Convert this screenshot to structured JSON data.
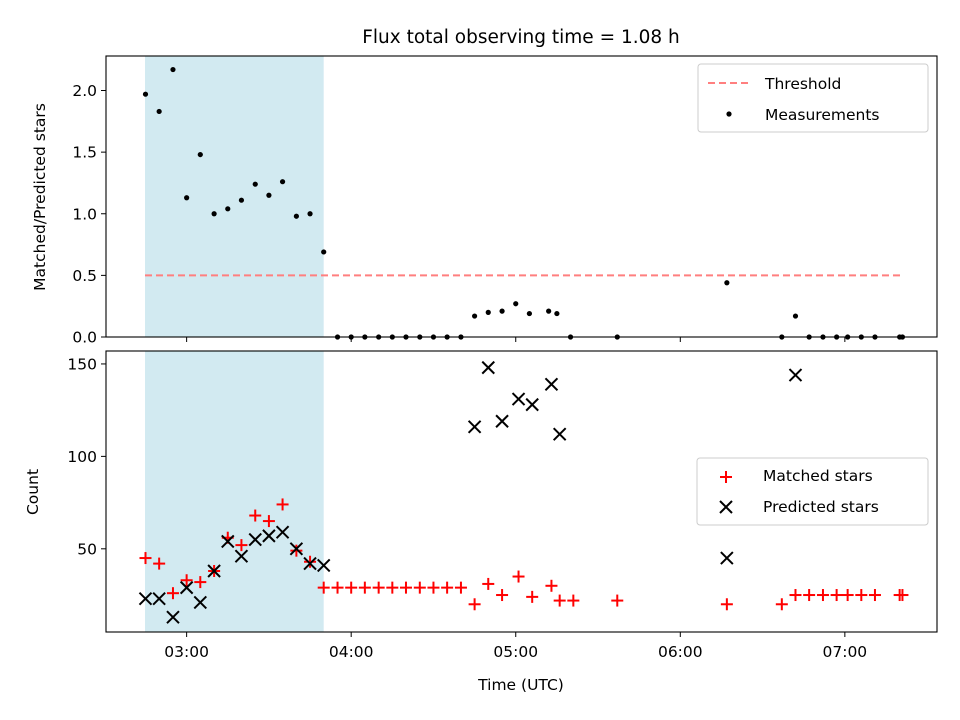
{
  "title": "Flux total observing time = 1.08 h",
  "colors": {
    "threshold": "#ff7f7f",
    "measure": "#000000",
    "matched": "#ff0000",
    "predicted": "#000000",
    "shade": "#add8e6"
  },
  "chart_data": [
    {
      "type": "scatter",
      "ylabel": "Matched/Predicted stars",
      "xlim": [
        2.51,
        7.56
      ],
      "ylim": [
        0,
        2.28
      ],
      "yticks": [
        {
          "v": 0,
          "label": "0.0"
        },
        {
          "v": 0.5,
          "label": "0.5"
        },
        {
          "v": 1.0,
          "label": "1.0"
        },
        {
          "v": 1.5,
          "label": "1.5"
        },
        {
          "v": 2.0,
          "label": "2.0"
        }
      ],
      "shaded_span": [
        2.747,
        3.833
      ],
      "threshold": {
        "name": "Threshold",
        "y": 0.5,
        "x": [
          2.747,
          7.35
        ]
      },
      "series": [
        {
          "name": "Measurements",
          "x": [
            2.75,
            2.833,
            2.917,
            3.0,
            3.083,
            3.167,
            3.25,
            3.333,
            3.417,
            3.5,
            3.583,
            3.667,
            3.75,
            3.833,
            3.917,
            4.0,
            4.083,
            4.167,
            4.25,
            4.333,
            4.417,
            4.5,
            4.583,
            4.667,
            4.75,
            4.833,
            4.917,
            5.0,
            5.083,
            5.2,
            5.25,
            5.333,
            5.617,
            6.283,
            6.617,
            6.7,
            6.783,
            6.867,
            6.95,
            7.017,
            7.1,
            7.183,
            7.333,
            7.35
          ],
          "y": [
            1.97,
            1.83,
            2.17,
            1.13,
            1.48,
            1.0,
            1.04,
            1.11,
            1.24,
            1.15,
            1.26,
            0.98,
            1.0,
            0.69,
            0,
            0,
            0,
            0,
            0,
            0,
            0,
            0,
            0,
            0,
            0.17,
            0.2,
            0.21,
            0.27,
            0.19,
            0.21,
            0.19,
            0,
            0,
            0.44,
            0,
            0.17,
            0,
            0,
            0,
            0,
            0,
            0,
            0,
            0
          ]
        }
      ],
      "legend": [
        {
          "label": "Threshold"
        },
        {
          "label": "Measurements"
        }
      ],
      "legend_position": "top-right"
    },
    {
      "type": "scatter",
      "xlabel": "Time (UTC)",
      "ylabel": "Count",
      "xlim": [
        2.51,
        7.56
      ],
      "ylim": [
        5,
        157
      ],
      "xticks": [
        {
          "v": 3.0,
          "label": "03:00"
        },
        {
          "v": 4.0,
          "label": "04:00"
        },
        {
          "v": 5.0,
          "label": "05:00"
        },
        {
          "v": 6.0,
          "label": "06:00"
        },
        {
          "v": 7.0,
          "label": "07:00"
        }
      ],
      "yticks": [
        {
          "v": 50,
          "label": "50"
        },
        {
          "v": 100,
          "label": "100"
        },
        {
          "v": 150,
          "label": "150"
        }
      ],
      "shaded_span": [
        2.747,
        3.833
      ],
      "series": [
        {
          "name": "Matched stars",
          "x": [
            2.75,
            2.833,
            2.917,
            3.0,
            3.083,
            3.167,
            3.25,
            3.333,
            3.417,
            3.5,
            3.583,
            3.667,
            3.75,
            3.833,
            3.917,
            4.0,
            4.083,
            4.167,
            4.25,
            4.333,
            4.417,
            4.5,
            4.583,
            4.667,
            4.75,
            4.833,
            4.917,
            5.017,
            5.1,
            5.217,
            5.267,
            5.35,
            5.617,
            6.283,
            6.617,
            6.7,
            6.783,
            6.867,
            6.95,
            7.017,
            7.1,
            7.183,
            7.333,
            7.35
          ],
          "y": [
            45,
            42,
            26,
            33,
            32,
            38,
            56,
            52,
            68,
            65,
            74,
            49,
            43,
            29,
            29,
            29,
            29,
            29,
            29,
            29,
            29,
            29,
            29,
            29,
            20,
            31,
            25,
            35,
            24,
            30,
            22,
            22,
            22,
            20,
            20,
            25,
            25,
            25,
            25,
            25,
            25,
            25,
            25,
            25
          ]
        },
        {
          "name": "Predicted stars",
          "x": [
            2.75,
            2.833,
            2.917,
            3.0,
            3.083,
            3.167,
            3.25,
            3.333,
            3.417,
            3.5,
            3.583,
            3.667,
            3.75,
            3.833,
            4.75,
            4.833,
            4.917,
            5.017,
            5.1,
            5.217,
            5.267,
            6.283,
            6.7
          ],
          "y": [
            23,
            23,
            13,
            29,
            21,
            38,
            54,
            46,
            55,
            57,
            59,
            50,
            42,
            41,
            116,
            148,
            119,
            131,
            128,
            139,
            112,
            45,
            144
          ]
        }
      ],
      "legend": [
        {
          "label": "Matched stars"
        },
        {
          "label": "Predicted stars"
        }
      ],
      "legend_position": "center-right"
    }
  ]
}
